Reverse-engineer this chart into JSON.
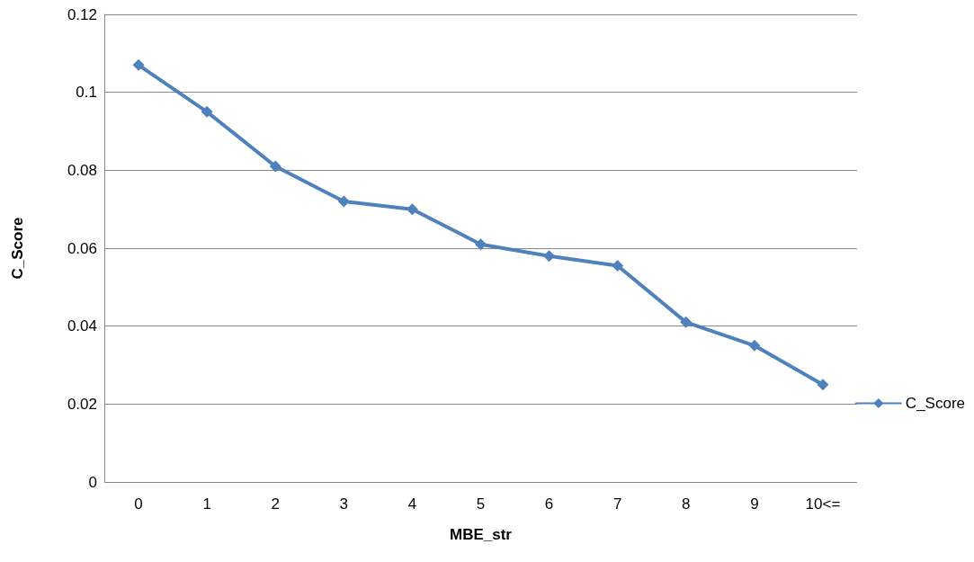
{
  "chart_data": {
    "type": "line",
    "xlabel": "MBE_str",
    "ylabel": "C_Score",
    "categories": [
      "0",
      "1",
      "2",
      "3",
      "4",
      "5",
      "6",
      "7",
      "8",
      "9",
      "10<="
    ],
    "series": [
      {
        "name": "C_Score",
        "color": "#4f81bd",
        "values": [
          0.107,
          0.095,
          0.081,
          0.072,
          0.07,
          0.061,
          0.058,
          0.0555,
          0.041,
          0.035,
          0.025
        ]
      }
    ],
    "ylim": [
      0,
      0.12
    ],
    "yticks": [
      0,
      0.02,
      0.04,
      0.06,
      0.08,
      0.1,
      0.12
    ],
    "grid": "y",
    "legend": "right",
    "marker": "diamond",
    "line_style": "solid"
  }
}
